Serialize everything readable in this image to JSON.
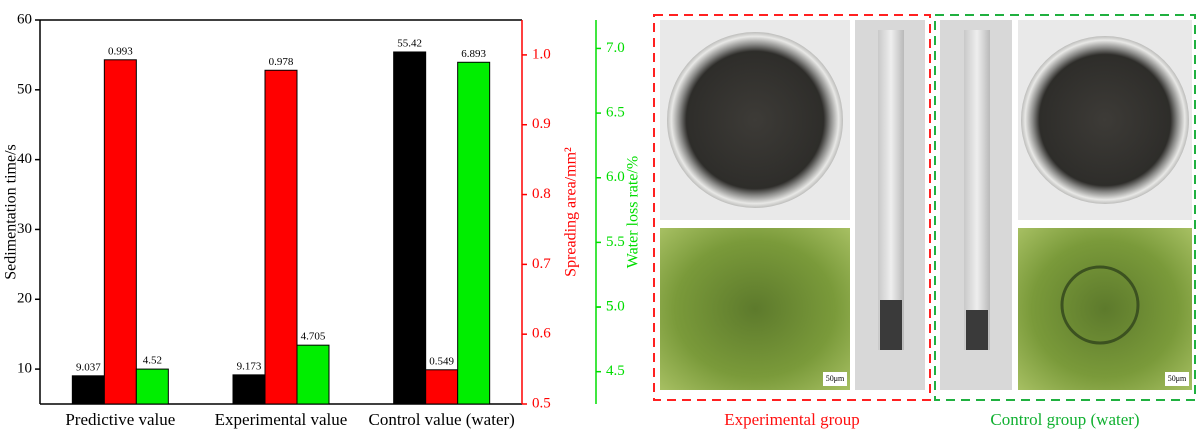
{
  "chart_data": {
    "type": "bar",
    "categories": [
      "Predictive value",
      "Experimental value",
      "Control value (water)"
    ],
    "series": [
      {
        "color": "#000000",
        "axis": "y",
        "values": [
          9.037,
          9.173,
          55.42
        ]
      },
      {
        "color": "#ff0000",
        "axis": "y2",
        "values": [
          0.993,
          0.978,
          0.549
        ]
      },
      {
        "color": "#00ee00",
        "axis": "y3",
        "values": [
          4.52,
          4.705,
          6.893
        ]
      }
    ],
    "ylabel": "Sedimentation time/s",
    "ylim": [
      5,
      60
    ],
    "yticks": [
      10,
      20,
      30,
      40,
      50,
      60
    ],
    "ycolor": "#000000",
    "y2label": "Spreading area/mm²",
    "y2lim": [
      0.5,
      1.05
    ],
    "y2ticks": [
      {
        "value": 0.5,
        "label": "0.5"
      },
      {
        "value": 0.6,
        "label": "0.6"
      },
      {
        "value": 0.7,
        "label": "0.7"
      },
      {
        "value": 0.8,
        "label": "0.8"
      },
      {
        "value": 0.9,
        "label": "0.9"
      },
      {
        "value": 1.0,
        "label": "1.0"
      }
    ],
    "y2color": "#ff0000",
    "y3label": "Water loss rate/%",
    "y3lim": [
      4.25,
      7.22
    ],
    "y3ticks": [
      4.5,
      5.0,
      {
        "value": 5.0,
        "label": "5.0"
      },
      5.5,
      {
        "value": 6.0,
        "label": "6.0"
      },
      6.5,
      {
        "value": 7.0,
        "label": "7.0"
      }
    ],
    "y3color": "#00dd00"
  },
  "figure": {
    "captions": [
      "Experimental group",
      "Control group (water)"
    ],
    "scale_labels": [
      "50μm",
      "50μm"
    ]
  }
}
